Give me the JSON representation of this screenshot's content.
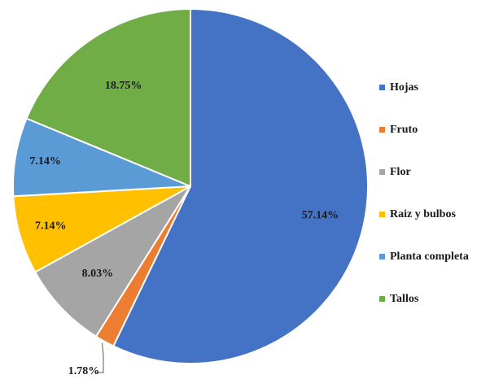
{
  "chart_data": {
    "type": "pie",
    "title": "",
    "categories": [
      "Hojas",
      "Fruto",
      "Flor",
      "Raiz y bulbos",
      "Planta completa",
      "Tallos"
    ],
    "values": [
      57.14,
      1.78,
      8.03,
      7.14,
      7.14,
      18.75
    ],
    "value_labels": [
      "57.14%",
      "1.78%",
      "8.03%",
      "7.14%",
      "7.14%",
      "18.75%"
    ],
    "colors": [
      "#4472C4",
      "#ED7D31",
      "#A5A5A5",
      "#FFC000",
      "#5B9BD5",
      "#70AD47"
    ],
    "start_angle": "12 o'clock",
    "direction": "clockwise",
    "legend": {
      "placement": "right",
      "items": [
        "Hojas",
        "Fruto",
        "Flor",
        "Raiz y bulbos",
        "Planta completa",
        "Tallos"
      ]
    }
  }
}
